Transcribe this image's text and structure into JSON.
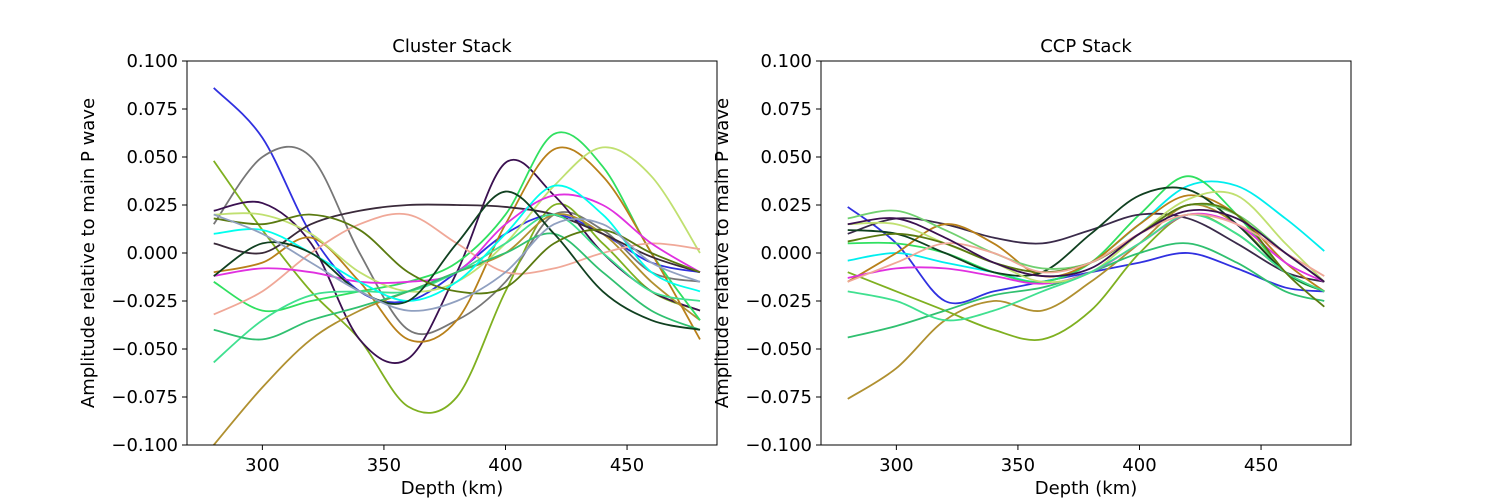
{
  "chart_data": [
    {
      "type": "line",
      "title": "Cluster Stack",
      "xlabel": "Depth (km)",
      "ylabel": "Amplitude relative to main P wave",
      "xlim": [
        269,
        487
      ],
      "ylim": [
        -0.1,
        0.1
      ],
      "xticks": [
        300,
        350,
        400,
        450
      ],
      "yticks": [
        -0.1,
        -0.075,
        -0.05,
        -0.025,
        0.0,
        0.025,
        0.05,
        0.075,
        0.1
      ],
      "ytick_labels": [
        "−0.100",
        "−0.075",
        "−0.050",
        "−0.025",
        "0.000",
        "0.025",
        "0.050",
        "0.075",
        "0.100"
      ],
      "xtick_labels": [
        "300",
        "350",
        "400",
        "450"
      ],
      "grid": false,
      "legend": "none",
      "x": [
        280,
        300,
        320,
        340,
        360,
        380,
        400,
        420,
        440,
        460,
        480
      ],
      "series": [
        {
          "color": "#3030e0",
          "values": [
            0.086,
            0.06,
            0.01,
            -0.02,
            -0.025,
            -0.01,
            0.01,
            0.02,
            0.01,
            -0.005,
            -0.01
          ]
        },
        {
          "color": "#777777",
          "values": [
            0.015,
            0.05,
            0.05,
            0.0,
            -0.04,
            -0.035,
            -0.015,
            0.02,
            0.012,
            -0.01,
            -0.015
          ]
        },
        {
          "color": "#7fb020",
          "values": [
            0.048,
            0.012,
            -0.02,
            -0.045,
            -0.08,
            -0.075,
            -0.02,
            0.025,
            0.005,
            -0.02,
            -0.03
          ]
        },
        {
          "color": "#3a1050",
          "values": [
            0.022,
            0.026,
            0.005,
            -0.045,
            -0.055,
            -0.01,
            0.047,
            0.03,
            0.0,
            -0.02,
            -0.03
          ]
        },
        {
          "color": "#b09030",
          "values": [
            -0.1,
            -0.07,
            -0.045,
            -0.03,
            -0.02,
            -0.01,
            0.0,
            0.02,
            0.01,
            -0.015,
            -0.035
          ]
        },
        {
          "color": "#30e060",
          "values": [
            -0.015,
            -0.03,
            -0.025,
            -0.02,
            -0.015,
            -0.005,
            0.02,
            0.062,
            0.045,
            0.0,
            -0.035
          ]
        },
        {
          "color": "#b8801a",
          "values": [
            -0.01,
            -0.005,
            0.008,
            -0.015,
            -0.045,
            -0.035,
            0.015,
            0.054,
            0.04,
            0.0,
            -0.045
          ]
        },
        {
          "color": "#c0e070",
          "values": [
            0.02,
            0.02,
            0.01,
            -0.01,
            -0.02,
            -0.015,
            0.005,
            0.035,
            0.055,
            0.04,
            0.0
          ]
        },
        {
          "color": "#3a2a3a",
          "values": [
            0.005,
            0.0,
            0.015,
            0.022,
            0.025,
            0.025,
            0.024,
            0.02,
            0.01,
            -0.002,
            -0.01
          ]
        },
        {
          "color": "#f0a898",
          "values": [
            -0.032,
            -0.02,
            0.0,
            0.015,
            0.02,
            0.005,
            -0.01,
            -0.008,
            0.0,
            0.005,
            0.002
          ]
        },
        {
          "color": "#e030e0",
          "values": [
            -0.012,
            -0.008,
            -0.01,
            -0.015,
            -0.015,
            -0.01,
            0.015,
            0.03,
            0.025,
            0.005,
            -0.01
          ]
        },
        {
          "color": "#40e090",
          "values": [
            -0.057,
            -0.035,
            -0.022,
            -0.02,
            -0.02,
            -0.01,
            0.005,
            0.02,
            0.0,
            -0.02,
            -0.025
          ]
        },
        {
          "color": "#30c070",
          "values": [
            -0.04,
            -0.045,
            -0.035,
            -0.028,
            -0.02,
            -0.01,
            0.0,
            0.01,
            -0.01,
            -0.03,
            -0.04
          ]
        },
        {
          "color": "#00ffee",
          "values": [
            0.01,
            0.012,
            0.0,
            -0.015,
            -0.025,
            -0.015,
            0.01,
            0.035,
            0.02,
            -0.01,
            -0.02
          ]
        },
        {
          "color": "#104020",
          "values": [
            -0.012,
            0.005,
            0.0,
            -0.02,
            -0.025,
            0.005,
            0.032,
            0.01,
            -0.02,
            -0.035,
            -0.04
          ]
        },
        {
          "color": "#5a7a10",
          "values": [
            0.018,
            0.015,
            0.02,
            0.012,
            -0.01,
            -0.02,
            -0.018,
            0.005,
            0.012,
            0.0,
            -0.01
          ]
        },
        {
          "color": "#90a0c0",
          "values": [
            0.02,
            0.01,
            -0.005,
            -0.02,
            -0.03,
            -0.025,
            -0.01,
            0.015,
            0.015,
            -0.005,
            -0.015
          ]
        }
      ]
    },
    {
      "type": "line",
      "title": "CCP Stack",
      "xlabel": "Depth (km)",
      "ylabel": "Amplitude relative to main P wave",
      "xlim": [
        269,
        487
      ],
      "ylim": [
        -0.1,
        0.1
      ],
      "xticks": [
        300,
        350,
        400,
        450
      ],
      "yticks": [
        -0.1,
        -0.075,
        -0.05,
        -0.025,
        0.0,
        0.025,
        0.05,
        0.075,
        0.1
      ],
      "ytick_labels": [
        "−0.100",
        "−0.075",
        "−0.050",
        "−0.025",
        "0.000",
        "0.025",
        "0.050",
        "0.075",
        "0.100"
      ],
      "xtick_labels": [
        "300",
        "350",
        "400",
        "450"
      ],
      "grid": false,
      "legend": "none",
      "x": [
        280,
        300,
        320,
        340,
        360,
        380,
        400,
        420,
        440,
        460,
        476
      ],
      "series": [
        {
          "color": "#3030e0",
          "values": [
            0.024,
            0.005,
            -0.025,
            -0.02,
            -0.015,
            -0.01,
            -0.005,
            0.0,
            -0.008,
            -0.018,
            -0.02
          ]
        },
        {
          "color": "#00eeee",
          "values": [
            -0.004,
            0.0,
            -0.005,
            -0.01,
            -0.015,
            -0.005,
            0.015,
            0.035,
            0.035,
            0.018,
            0.001
          ]
        },
        {
          "color": "#30e060",
          "values": [
            0.005,
            0.005,
            0.0,
            -0.01,
            -0.015,
            -0.005,
            0.02,
            0.04,
            0.02,
            -0.01,
            -0.02
          ]
        },
        {
          "color": "#3a2a4a",
          "values": [
            0.01,
            0.018,
            0.015,
            0.008,
            0.005,
            0.012,
            0.02,
            0.018,
            0.005,
            -0.01,
            -0.015
          ]
        },
        {
          "color": "#b8801a",
          "values": [
            -0.015,
            0.0,
            0.015,
            0.005,
            -0.012,
            -0.005,
            0.015,
            0.03,
            0.02,
            -0.005,
            -0.02
          ]
        },
        {
          "color": "#b09030",
          "values": [
            -0.076,
            -0.06,
            -0.035,
            -0.025,
            -0.03,
            -0.015,
            0.005,
            0.025,
            0.015,
            -0.01,
            -0.02
          ]
        },
        {
          "color": "#7fb020",
          "values": [
            -0.01,
            -0.02,
            -0.03,
            -0.04,
            -0.045,
            -0.03,
            0.0,
            0.02,
            0.01,
            -0.01,
            -0.02
          ]
        },
        {
          "color": "#30c070",
          "values": [
            -0.044,
            -0.038,
            -0.03,
            -0.022,
            -0.018,
            -0.01,
            0.0,
            0.005,
            -0.005,
            -0.02,
            -0.025
          ]
        },
        {
          "color": "#104020",
          "values": [
            0.012,
            0.01,
            0.0,
            -0.01,
            -0.01,
            0.01,
            0.03,
            0.033,
            0.015,
            -0.01,
            -0.02
          ]
        },
        {
          "color": "#e030e0",
          "values": [
            -0.013,
            -0.008,
            -0.008,
            -0.012,
            -0.016,
            -0.01,
            0.005,
            0.02,
            0.015,
            -0.005,
            -0.015
          ]
        },
        {
          "color": "#c0e070",
          "values": [
            0.015,
            0.015,
            0.005,
            -0.005,
            -0.015,
            -0.01,
            0.01,
            0.028,
            0.03,
            0.005,
            -0.015
          ]
        },
        {
          "color": "#40e090",
          "values": [
            -0.02,
            -0.025,
            -0.035,
            -0.03,
            -0.02,
            -0.01,
            0.005,
            0.02,
            0.01,
            -0.01,
            -0.02
          ]
        },
        {
          "color": "#70d070",
          "values": [
            0.018,
            0.022,
            0.012,
            0.0,
            -0.008,
            -0.005,
            0.01,
            0.025,
            0.02,
            0.0,
            -0.015
          ]
        },
        {
          "color": "#5a7a10",
          "values": [
            0.006,
            0.01,
            0.005,
            -0.005,
            -0.01,
            -0.005,
            0.01,
            0.025,
            0.02,
            -0.01,
            -0.028
          ]
        },
        {
          "color": "#f0a898",
          "values": [
            -0.015,
            -0.005,
            0.005,
            0.0,
            -0.01,
            -0.005,
            0.01,
            0.02,
            0.015,
            0.0,
            -0.012
          ]
        },
        {
          "color": "#3a1050",
          "values": [
            0.015,
            0.018,
            0.008,
            -0.005,
            -0.012,
            -0.008,
            0.01,
            0.022,
            0.018,
            0.0,
            -0.015
          ]
        }
      ]
    }
  ]
}
